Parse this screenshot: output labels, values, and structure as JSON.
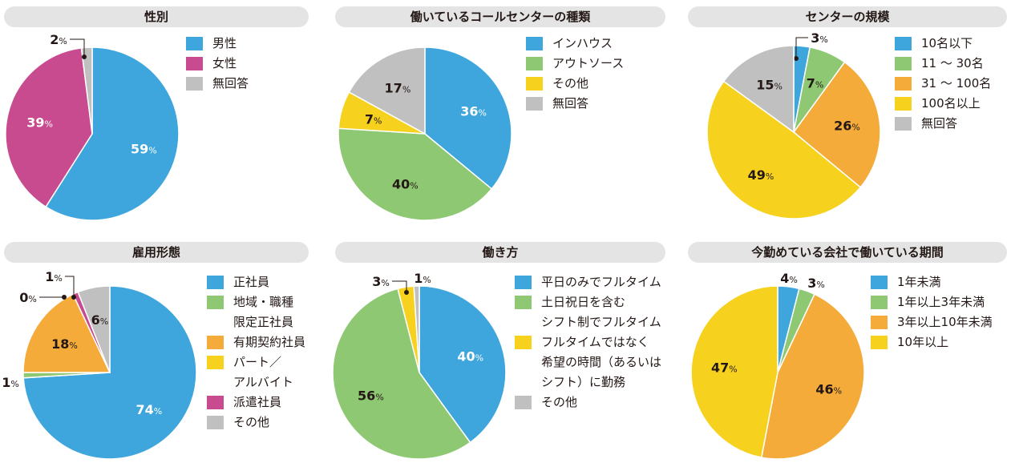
{
  "colors": {
    "blue": "#3ea6dd",
    "green": "#8ec872",
    "lime": "#a7d050",
    "orange": "#f5ab3a",
    "yellow": "#f6d21f",
    "magenta": "#c84b8f",
    "gray": "#c0c0c0"
  },
  "chart_data": [
    {
      "type": "pie",
      "title": "性別",
      "labels": [
        "男性",
        "女性",
        "無回答"
      ],
      "values": [
        59,
        39,
        2
      ],
      "colors": [
        "#3ea6dd",
        "#c84b8f",
        "#c0c0c0"
      ],
      "legend": "right"
    },
    {
      "type": "pie",
      "title": "働いているコールセンターの種類",
      "labels": [
        "インハウス",
        "アウトソース",
        "その他",
        "無回答"
      ],
      "values": [
        36,
        40,
        7,
        17
      ],
      "colors": [
        "#3ea6dd",
        "#8ec872",
        "#f6d21f",
        "#c0c0c0"
      ],
      "legend": "right"
    },
    {
      "type": "pie",
      "title": "センターの規模",
      "labels": [
        "10名以下",
        "11 ～ 30名",
        "31 ～ 100名",
        "100名以上",
        "無回答"
      ],
      "values": [
        3,
        7,
        26,
        49,
        15
      ],
      "colors": [
        "#3ea6dd",
        "#8ec872",
        "#f5ab3a",
        "#f6d21f",
        "#c0c0c0"
      ],
      "legend": "right"
    },
    {
      "type": "pie",
      "title": "雇用形態",
      "labels": [
        "正社員",
        "地域・職種\n限定正社員",
        "有期契約社員",
        "パート／\nアルバイト",
        "派遣社員",
        "その他"
      ],
      "values": [
        74,
        1,
        18,
        0,
        1,
        6
      ],
      "colors": [
        "#3ea6dd",
        "#8ec872",
        "#f5ab3a",
        "#f6d21f",
        "#c84b8f",
        "#c0c0c0"
      ],
      "legend": "right"
    },
    {
      "type": "pie",
      "title": "働き方",
      "labels": [
        "平日のみでフルタイム",
        "土日祝日を含む\nシフト制でフルタイム",
        "フルタイムではなく\n希望の時間（あるいは\nシフト）に勤務",
        "その他"
      ],
      "values": [
        40,
        56,
        3,
        1
      ],
      "colors": [
        "#3ea6dd",
        "#8ec872",
        "#f6d21f",
        "#c0c0c0"
      ],
      "legend": "right"
    },
    {
      "type": "pie",
      "title": "今勤めている会社で働いている期間",
      "labels": [
        "1年未満",
        "1年以上3年未満",
        "3年以上10年未満",
        "10年以上"
      ],
      "values": [
        4,
        3,
        46,
        47
      ],
      "colors": [
        "#3ea6dd",
        "#8ec872",
        "#f5ab3a",
        "#f6d21f"
      ],
      "legend": "right"
    }
  ]
}
